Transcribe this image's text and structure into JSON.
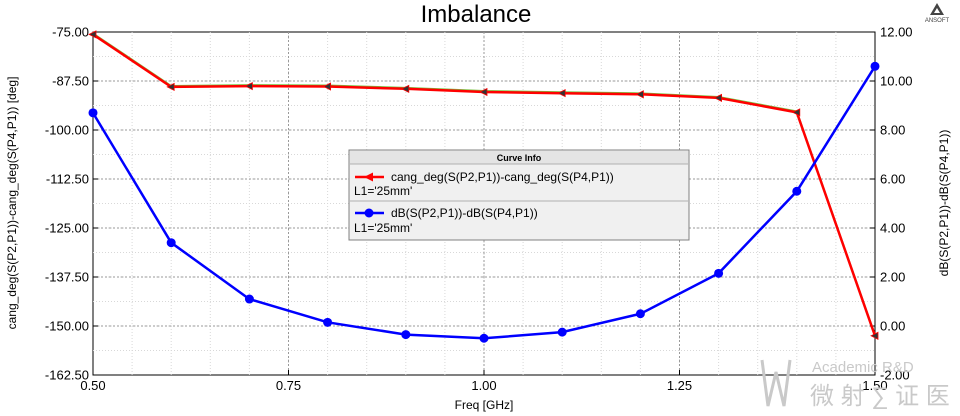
{
  "chart_data": {
    "type": "line",
    "title": "Imbalance",
    "xlabel": "Freq [GHz]",
    "ylabel_left": "cang_deg(S(P2,P1))-cang_deg(S(P4,P1)) [deg]",
    "ylabel_right": "dB(S(P2,P1))-dB(S(P4,P1))",
    "xlim": [
      0.5,
      1.5
    ],
    "ylim_left": [
      -162.5,
      -75.0
    ],
    "ylim_right": [
      -2.0,
      12.0
    ],
    "x_ticks": [
      "0.50",
      "0.75",
      "1.00",
      "1.25",
      "1.50"
    ],
    "y_left_ticks": [
      "-75.00",
      "-87.50",
      "-100.00",
      "-112.50",
      "-125.00",
      "-137.50",
      "-150.00",
      "-162.50"
    ],
    "y_right_ticks": [
      "12.00",
      "10.00",
      "8.00",
      "6.00",
      "4.00",
      "2.00",
      "0.00",
      "-2.00"
    ],
    "grid": true,
    "legend": {
      "header": "Curve Info",
      "placement": "center",
      "entries": [
        {
          "label": "cang_deg(S(P2,P1))-cang_deg(S(P4,P1))",
          "sublabel": "L1='25mm'",
          "color": "#ff0000"
        },
        {
          "label": "dB(S(P2,P1))-dB(S(P4,P1))",
          "sublabel": "L1='25mm'",
          "color": "#0000ff"
        }
      ]
    },
    "series": [
      {
        "name": "cang_deg(S(P2,P1))-cang_deg(S(P4,P1))",
        "axis": "left",
        "color": "#ff0000",
        "marker": "triangle",
        "x": [
          0.5,
          0.6,
          0.7,
          0.8,
          0.9,
          1.0,
          1.1,
          1.2,
          1.3,
          1.4,
          1.5
        ],
        "y": [
          -75.6,
          -89.0,
          -88.8,
          -88.9,
          -89.5,
          -90.3,
          -90.6,
          -90.9,
          -91.8,
          -95.5,
          -152.5
        ]
      },
      {
        "name": "dB(S(P2,P1))-dB(S(P4,P1))",
        "axis": "right",
        "color": "#0000ff",
        "marker": "circle",
        "x": [
          0.5,
          0.6,
          0.7,
          0.8,
          0.9,
          1.0,
          1.1,
          1.2,
          1.3,
          1.4,
          1.5
        ],
        "y": [
          8.7,
          3.4,
          1.1,
          0.15,
          -0.35,
          -0.5,
          -0.25,
          0.5,
          2.15,
          5.5,
          10.6
        ]
      }
    ]
  },
  "branding": {
    "logo_text": "ANSOFT",
    "watermark_line1": "Academic R&D",
    "watermark_line2": "微 射 ∑ 证 医"
  }
}
